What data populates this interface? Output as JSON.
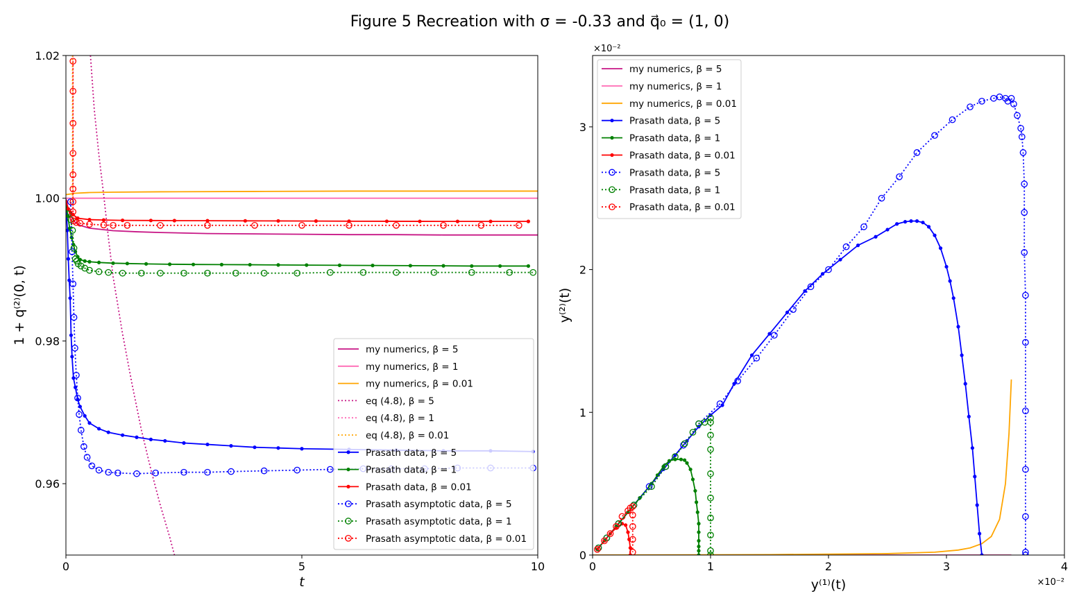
{
  "figure": {
    "title": "Figure 5 Recreation with σ = -0.33 and q⃗₀ = (1, 0)"
  },
  "chart_data": [
    {
      "type": "line",
      "xlabel": "t",
      "ylabel": "1 + q⁽²⁾(0, t)",
      "xlim": [
        0,
        10
      ],
      "ylim": [
        0.95,
        1.02
      ],
      "xticks": [
        "0",
        "5",
        "10"
      ],
      "yticks": [
        "0.96",
        "0.98",
        "1.00",
        "1.02"
      ],
      "grid": false,
      "legend_position": "lower-right",
      "series": [
        {
          "name": "my numerics, β = 5",
          "color": "#c71585",
          "style": "solid",
          "marker": "none",
          "x": [
            0,
            0.05,
            0.1,
            0.2,
            0.3,
            0.5,
            1,
            1.5,
            2,
            3,
            4,
            5,
            6,
            7,
            8,
            9,
            10
          ],
          "y": [
            1.0,
            0.9985,
            0.9975,
            0.9966,
            0.9962,
            0.9958,
            0.99545,
            0.9953,
            0.9952,
            0.99505,
            0.995,
            0.99495,
            0.9949,
            0.9949,
            0.99485,
            0.99485,
            0.99485
          ]
        },
        {
          "name": "my numerics, β = 1",
          "color": "#ff69b4",
          "style": "solid",
          "marker": "none",
          "x": [
            0,
            10
          ],
          "y": [
            1.0,
            1.0
          ]
        },
        {
          "name": "my numerics, β = 0.01",
          "color": "#ffa500",
          "style": "solid",
          "marker": "none",
          "x": [
            0,
            0.2,
            0.5,
            1,
            2,
            4,
            6,
            8,
            10
          ],
          "y": [
            1.0005,
            1.0007,
            1.0008,
            1.00085,
            1.0009,
            1.00095,
            1.001,
            1.001,
            1.001
          ]
        },
        {
          "name": "eq (4.8), β = 5",
          "color": "#c71585",
          "style": "dotted",
          "marker": "none",
          "x": [
            0.52,
            0.6,
            0.7,
            0.8,
            0.9,
            1.0,
            1.2,
            1.4,
            1.6,
            1.8,
            2.0,
            2.2,
            2.3
          ],
          "y": [
            1.02,
            1.0125,
            1.006,
            1.0005,
            0.9945,
            0.989,
            0.981,
            0.974,
            0.9675,
            0.962,
            0.957,
            0.9525,
            0.95
          ]
        },
        {
          "name": "eq (4.8), β = 1",
          "color": "#ff69b4",
          "style": "dotted",
          "marker": "none",
          "x": [
            0.15,
            0.15
          ],
          "y": [
            1.02,
            0.998
          ]
        },
        {
          "name": "eq (4.8), β = 0.01",
          "color": "#ffa500",
          "style": "dotted",
          "marker": "none",
          "x": [
            0.14,
            0.14
          ],
          "y": [
            1.02,
            0.999
          ]
        },
        {
          "name": "Prasath data, β = 5",
          "color": "#0000ff",
          "style": "solid",
          "marker": "dot",
          "x": [
            0,
            0.03,
            0.05,
            0.07,
            0.09,
            0.11,
            0.13,
            0.16,
            0.2,
            0.25,
            0.3,
            0.4,
            0.5,
            0.7,
            0.9,
            1.2,
            1.5,
            1.8,
            2.1,
            2.5,
            3.0,
            3.5,
            4.0,
            4.5,
            5.0,
            6.0,
            7.0,
            8.0,
            9.0,
            9.9
          ],
          "y": [
            0.9995,
            0.9955,
            0.9915,
            0.9885,
            0.986,
            0.9808,
            0.9778,
            0.9748,
            0.9735,
            0.9718,
            0.9708,
            0.9695,
            0.9685,
            0.9677,
            0.9672,
            0.9668,
            0.9665,
            0.9662,
            0.966,
            0.9657,
            0.9655,
            0.9653,
            0.9651,
            0.965,
            0.9649,
            0.9648,
            0.9647,
            0.9646,
            0.9646,
            0.9645
          ]
        },
        {
          "name": "Prasath data, β = 1",
          "color": "#008000",
          "style": "solid",
          "marker": "dot",
          "x": [
            0,
            0.04,
            0.08,
            0.12,
            0.16,
            0.2,
            0.25,
            0.3,
            0.4,
            0.5,
            0.7,
            1.0,
            1.3,
            1.7,
            2.2,
            2.7,
            3.3,
            3.9,
            4.5,
            5.1,
            5.8,
            6.5,
            7.3,
            8.0,
            8.6,
            9.2,
            9.8
          ],
          "y": [
            0.9995,
            0.9975,
            0.9958,
            0.9945,
            0.9935,
            0.9925,
            0.9918,
            0.9914,
            0.9912,
            0.9911,
            0.991,
            0.9909,
            0.99085,
            0.9908,
            0.99075,
            0.99072,
            0.9907,
            0.99068,
            0.99065,
            0.99063,
            0.9906,
            0.99058,
            0.99055,
            0.99053,
            0.9905,
            0.9905,
            0.9905
          ]
        },
        {
          "name": "Prasath data, β = 0.01",
          "color": "#ff0000",
          "style": "solid",
          "marker": "dot",
          "x": [
            0,
            0.05,
            0.1,
            0.15,
            0.25,
            0.5,
            0.8,
            1.2,
            1.8,
            2.3,
            3.0,
            3.8,
            4.5,
            5.3,
            6.0,
            6.8,
            7.5,
            8.3,
            9.0,
            9.8
          ],
          "y": [
            0.9995,
            0.9985,
            0.998,
            0.9977,
            0.9972,
            0.997,
            0.99695,
            0.9969,
            0.99688,
            0.99686,
            0.99685,
            0.99683,
            0.99682,
            0.9968,
            0.99678,
            0.99677,
            0.99676,
            0.99675,
            0.99675,
            0.99675
          ]
        },
        {
          "name": "Prasath asymptotic data, β = 5",
          "color": "#0000ff",
          "style": "dotted",
          "marker": "circle",
          "x": [
            0.1,
            0.13,
            0.15,
            0.17,
            0.19,
            0.22,
            0.25,
            0.28,
            0.32,
            0.38,
            0.45,
            0.55,
            0.7,
            0.9,
            1.1,
            1.5,
            1.9,
            2.5,
            3.0,
            3.5,
            4.2,
            4.9,
            5.6,
            6.3,
            6.9,
            7.6,
            8.3,
            9.0,
            9.9
          ],
          "y": [
            0.9995,
            0.9925,
            0.988,
            0.9833,
            0.979,
            0.9752,
            0.972,
            0.9697,
            0.9675,
            0.9652,
            0.9637,
            0.9625,
            0.9619,
            0.9616,
            0.9615,
            0.9614,
            0.9615,
            0.9616,
            0.9616,
            0.9617,
            0.9618,
            0.9619,
            0.962,
            0.9621,
            0.9621,
            0.9621,
            0.9622,
            0.9622,
            0.9622
          ]
        },
        {
          "name": "Prasath asymptotic data, β = 1",
          "color": "#008000",
          "style": "dotted",
          "marker": "circle",
          "x": [
            0.05,
            0.1,
            0.14,
            0.17,
            0.2,
            0.23,
            0.26,
            0.32,
            0.4,
            0.5,
            0.7,
            0.9,
            1.2,
            1.6,
            2.0,
            2.5,
            3.0,
            3.6,
            4.2,
            4.9,
            5.6,
            6.3,
            7.0,
            7.8,
            8.6,
            9.4,
            9.9
          ],
          "y": [
            0.9978,
            0.997,
            0.9955,
            0.993,
            0.9915,
            0.9912,
            0.9908,
            0.9905,
            0.9902,
            0.9899,
            0.9897,
            0.9896,
            0.9895,
            0.9895,
            0.9895,
            0.9895,
            0.9895,
            0.9895,
            0.9895,
            0.9895,
            0.9896,
            0.9896,
            0.9896,
            0.9896,
            0.9896,
            0.9896,
            0.9896
          ]
        },
        {
          "name": "Prasath asymptotic data, β = 0.01",
          "color": "#ff0000",
          "style": "dotted",
          "marker": "circle",
          "x": [
            0.15,
            0.15,
            0.15,
            0.15,
            0.15,
            0.15,
            0.15,
            0.15,
            0.15,
            0.17,
            0.22,
            0.3,
            0.5,
            0.8,
            1.0,
            1.3,
            2.0,
            3.0,
            4.0,
            5.0,
            6.0,
            7.0,
            8.0,
            8.8,
            9.6
          ],
          "y": [
            1.0192,
            1.015,
            1.0105,
            1.0063,
            1.0033,
            1.0013,
            0.9995,
            0.9981,
            0.9972,
            0.9968,
            0.9966,
            0.9965,
            0.99635,
            0.99625,
            0.9962,
            0.9962,
            0.9962,
            0.9962,
            0.9962,
            0.9962,
            0.9962,
            0.9962,
            0.9962,
            0.9962,
            0.9962
          ]
        }
      ]
    },
    {
      "type": "line",
      "xlabel": "y⁽¹⁾(t)",
      "ylabel": "y⁽²⁾(t)",
      "xlim": [
        0,
        4
      ],
      "ylim": [
        0,
        3.5
      ],
      "xticks": [
        "0",
        "1",
        "2",
        "3",
        "4"
      ],
      "yticks": [
        "0",
        "1",
        "2",
        "3"
      ],
      "x_offset_label": "×10⁻²",
      "y_offset_label": "×10⁻²",
      "grid": false,
      "legend_position": "upper-left",
      "series": [
        {
          "name": "my numerics, β = 5",
          "color": "#c71585",
          "style": "solid",
          "marker": "none",
          "x": [
            0.0,
            3.55
          ],
          "y": [
            0.0,
            0.0
          ]
        },
        {
          "name": "my numerics, β = 1",
          "color": "#ff69b4",
          "style": "solid",
          "marker": "none",
          "x": [
            0.0,
            3.55
          ],
          "y": [
            0.0,
            0.0
          ]
        },
        {
          "name": "my numerics, β = 0.01",
          "color": "#ffa500",
          "style": "solid",
          "marker": "none",
          "x": [
            0.0,
            1.5,
            2.5,
            2.9,
            3.1,
            3.2,
            3.3,
            3.38,
            3.45,
            3.5,
            3.53,
            3.55
          ],
          "y": [
            0.0,
            0.003,
            0.01,
            0.02,
            0.035,
            0.05,
            0.08,
            0.13,
            0.25,
            0.5,
            0.85,
            1.23
          ]
        },
        {
          "name": "Prasath data, β = 5",
          "color": "#0000ff",
          "style": "solid",
          "marker": "dot",
          "x": [
            0.04,
            0.1,
            0.2,
            0.3,
            0.4,
            0.5,
            0.6,
            0.7,
            0.8,
            0.9,
            1.0,
            1.1,
            1.2,
            1.35,
            1.5,
            1.65,
            1.8,
            1.95,
            2.1,
            2.25,
            2.4,
            2.5,
            2.58,
            2.65,
            2.7,
            2.75,
            2.8,
            2.85,
            2.9,
            2.95,
            3.0,
            3.03,
            3.06,
            3.1,
            3.13,
            3.16,
            3.19,
            3.22,
            3.24,
            3.26,
            3.28,
            3.3
          ],
          "y": [
            0.04,
            0.1,
            0.2,
            0.3,
            0.4,
            0.5,
            0.6,
            0.7,
            0.8,
            0.9,
            0.98,
            1.05,
            1.2,
            1.4,
            1.55,
            1.7,
            1.85,
            1.97,
            2.07,
            2.17,
            2.23,
            2.28,
            2.32,
            2.335,
            2.34,
            2.34,
            2.33,
            2.3,
            2.24,
            2.15,
            2.02,
            1.92,
            1.8,
            1.6,
            1.4,
            1.2,
            0.97,
            0.75,
            0.55,
            0.35,
            0.15,
            0.0
          ]
        },
        {
          "name": "Prasath data, β = 1",
          "color": "#008000",
          "style": "solid",
          "marker": "dot",
          "x": [
            0.04,
            0.1,
            0.2,
            0.3,
            0.4,
            0.5,
            0.55,
            0.6,
            0.65,
            0.7,
            0.75,
            0.78,
            0.8,
            0.83,
            0.85,
            0.87,
            0.88,
            0.89,
            0.9,
            0.9,
            0.9,
            0.9,
            0.9,
            0.9
          ],
          "y": [
            0.04,
            0.1,
            0.2,
            0.3,
            0.4,
            0.5,
            0.56,
            0.62,
            0.66,
            0.67,
            0.67,
            0.665,
            0.645,
            0.6,
            0.53,
            0.45,
            0.37,
            0.3,
            0.22,
            0.16,
            0.1,
            0.06,
            0.03,
            0.0
          ]
        },
        {
          "name": "Prasath data, β = 0.01",
          "color": "#ff0000",
          "style": "solid",
          "marker": "dot",
          "x": [
            0.04,
            0.1,
            0.15,
            0.2,
            0.25,
            0.28,
            0.3,
            0.31,
            0.32,
            0.32
          ],
          "y": [
            0.04,
            0.1,
            0.15,
            0.19,
            0.22,
            0.21,
            0.16,
            0.11,
            0.05,
            0.0
          ]
        },
        {
          "name": "Prasath data, β = 5",
          "color": "#0000ff",
          "style": "dotted",
          "marker": "circle",
          "x": [
            0.05,
            0.12,
            0.22,
            0.35,
            0.48,
            0.62,
            0.77,
            0.9,
            1.08,
            1.23,
            1.39,
            1.54,
            1.7,
            1.85,
            2.0,
            2.15,
            2.3,
            2.45,
            2.6,
            2.75,
            2.9,
            3.05,
            3.2,
            3.3,
            3.4,
            3.45,
            3.5,
            3.52,
            3.55,
            3.57,
            3.6,
            3.63,
            3.64,
            3.65,
            3.66,
            3.66,
            3.66,
            3.67,
            3.67,
            3.67,
            3.67,
            3.67,
            3.67,
            3.67
          ],
          "y": [
            0.05,
            0.12,
            0.22,
            0.35,
            0.48,
            0.62,
            0.77,
            0.92,
            1.06,
            1.22,
            1.38,
            1.54,
            1.72,
            1.88,
            2.0,
            2.16,
            2.3,
            2.5,
            2.65,
            2.82,
            2.94,
            3.05,
            3.14,
            3.18,
            3.2,
            3.21,
            3.2,
            3.18,
            3.2,
            3.16,
            3.08,
            2.99,
            2.93,
            2.82,
            2.6,
            2.4,
            2.12,
            1.82,
            1.49,
            1.01,
            0.6,
            0.27,
            0.02,
            0.0
          ]
        },
        {
          "name": "Prasath data, β = 1",
          "color": "#008000",
          "style": "dotted",
          "marker": "circle",
          "x": [
            0.05,
            0.12,
            0.22,
            0.35,
            0.5,
            0.62,
            0.7,
            0.78,
            0.85,
            0.9,
            0.95,
            1.0,
            1.0,
            1.0,
            1.0,
            1.0,
            1.0,
            1.0,
            1.0,
            1.0,
            1.0
          ],
          "y": [
            0.05,
            0.12,
            0.22,
            0.35,
            0.48,
            0.62,
            0.69,
            0.78,
            0.86,
            0.92,
            0.93,
            0.96,
            0.93,
            0.84,
            0.74,
            0.57,
            0.4,
            0.26,
            0.14,
            0.03,
            0.0
          ]
        },
        {
          "name": "Prasath data, β = 0.01",
          "color": "#ff0000",
          "style": "dotted",
          "marker": "circle",
          "x": [
            0.04,
            0.1,
            0.15,
            0.2,
            0.25,
            0.3,
            0.32,
            0.34,
            0.34,
            0.34,
            0.34,
            0.34
          ],
          "y": [
            0.04,
            0.1,
            0.15,
            0.2,
            0.27,
            0.31,
            0.33,
            0.34,
            0.28,
            0.2,
            0.11,
            0.02
          ]
        }
      ]
    }
  ]
}
